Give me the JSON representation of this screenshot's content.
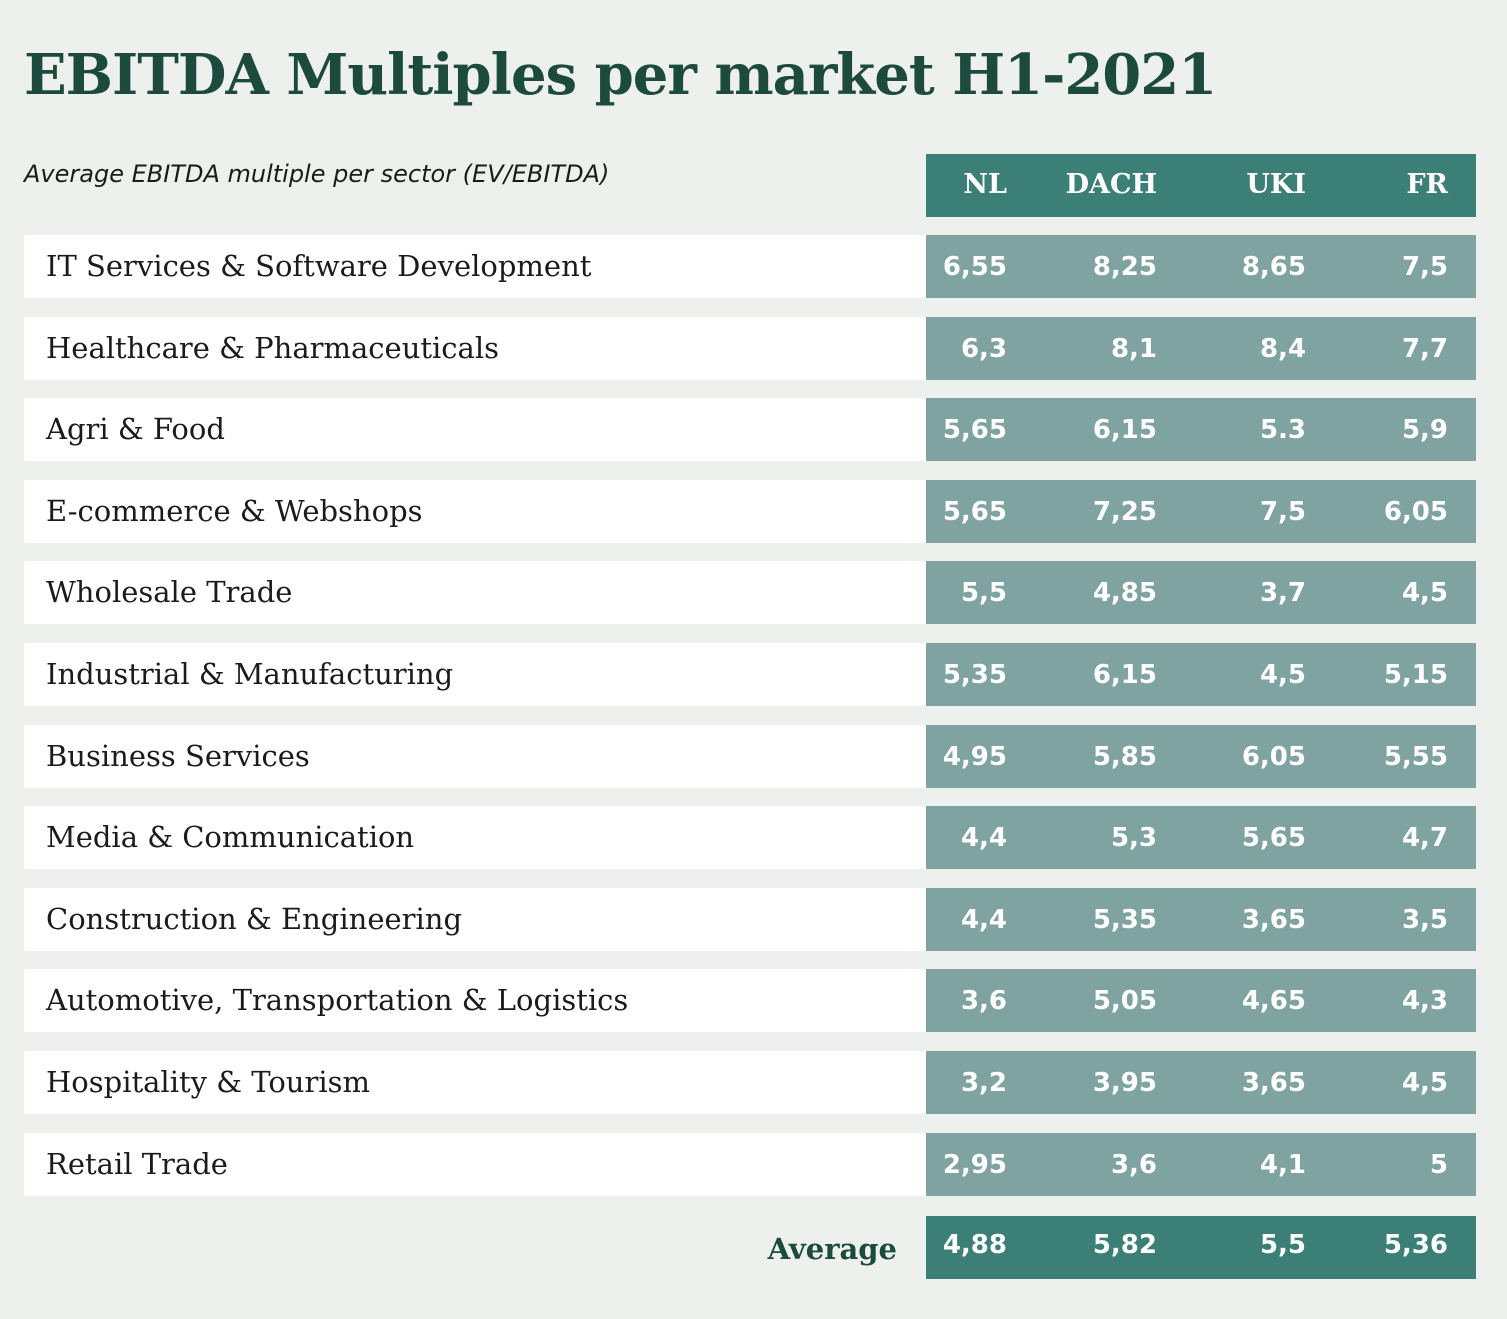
{
  "title": "EBITDA Multiples per market H1-2021",
  "subtitle": "Average EBITDA multiple per sector (EV/EBITDA)",
  "colors": {
    "title": "#1c4a3c",
    "header_band": "#3b7f77",
    "value_band": "#7fa3a0",
    "label_bg": "#ffffff",
    "page_bg": "#eef0ee"
  },
  "chart_data": {
    "type": "table",
    "title": "EBITDA Multiples per market H1-2021",
    "subtitle": "Average EBITDA multiple per sector (EV/EBITDA)",
    "columns": [
      "NL",
      "DACH",
      "UKI",
      "FR"
    ],
    "rows": [
      {
        "label": "IT Services & Software Development",
        "values": [
          "6,55",
          "8,25",
          "8,65",
          "7,5"
        ]
      },
      {
        "label": "Healthcare & Pharmaceuticals",
        "values": [
          "6,3",
          "8,1",
          "8,4",
          "7,7"
        ]
      },
      {
        "label": "Agri & Food",
        "values": [
          "5,65",
          "6,15",
          "5.3",
          "5,9"
        ]
      },
      {
        "label": "E-commerce & Webshops",
        "values": [
          "5,65",
          "7,25",
          "7,5",
          "6,05"
        ]
      },
      {
        "label": "Wholesale Trade",
        "values": [
          "5,5",
          "4,85",
          "3,7",
          "4,5"
        ]
      },
      {
        "label": "Industrial & Manufacturing",
        "values": [
          "5,35",
          "6,15",
          "4,5",
          "5,15"
        ]
      },
      {
        "label": "Business Services",
        "values": [
          "4,95",
          "5,85",
          "6,05",
          "5,55"
        ]
      },
      {
        "label": "Media & Communication",
        "values": [
          "4,4",
          "5,3",
          "5,65",
          "4,7"
        ]
      },
      {
        "label": "Construction & Engineering",
        "values": [
          "4,4",
          "5,35",
          "3,65",
          "3,5"
        ]
      },
      {
        "label": "Automotive, Transportation & Logistics",
        "values": [
          "3,6",
          "5,05",
          "4,65",
          "4,3"
        ]
      },
      {
        "label": "Hospitality & Tourism",
        "values": [
          "3,2",
          "3,95",
          "3,65",
          "4,5"
        ]
      },
      {
        "label": "Retail Trade",
        "values": [
          "2,95",
          "3,6",
          "4,1",
          "5"
        ]
      }
    ],
    "average": {
      "label": "Average",
      "values": [
        "4,88",
        "5,82",
        "5,5",
        "5,36"
      ]
    }
  }
}
